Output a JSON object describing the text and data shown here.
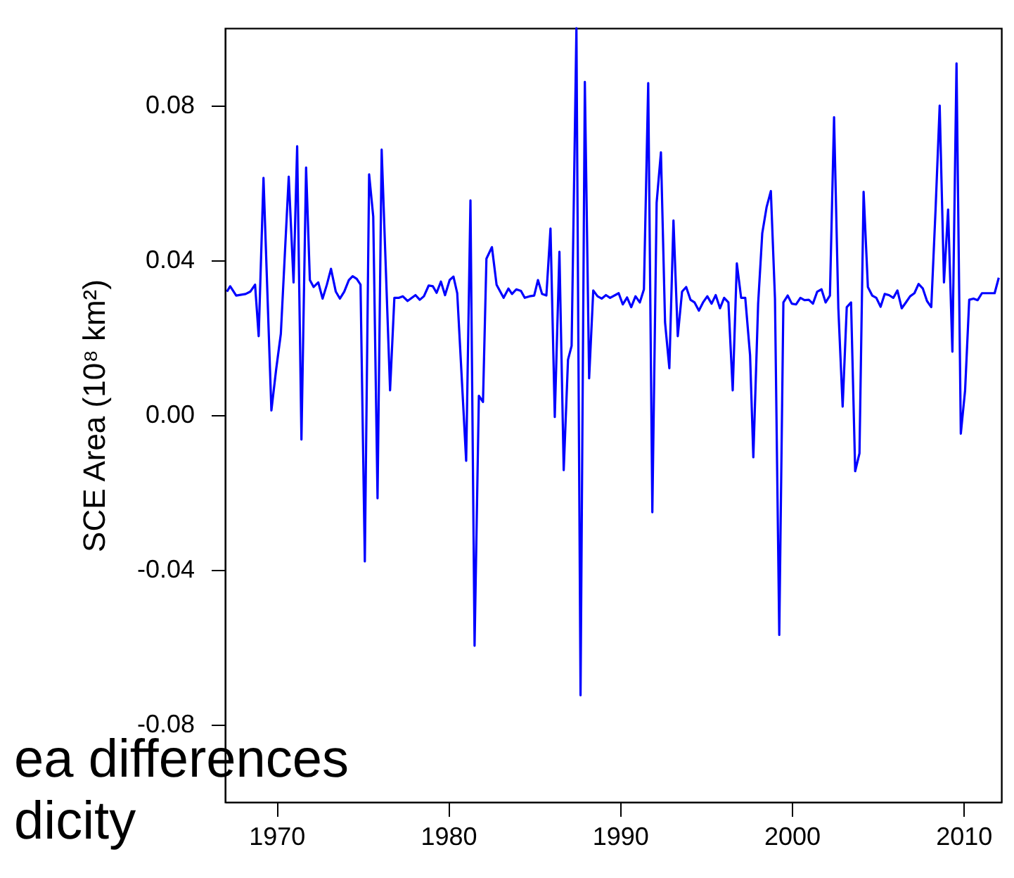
{
  "chart_data": {
    "type": "line",
    "ylabel": "SCE Area (10⁸ km²)",
    "xlim": [
      1967,
      2012.2
    ],
    "xticks": [
      1970,
      1980,
      1990,
      2000,
      2010
    ],
    "ylim": [
      -0.1,
      0.1
    ],
    "yticks": [
      {
        "value": 0.08,
        "label": "0.08"
      },
      {
        "value": 0.04,
        "label": "0.04"
      },
      {
        "value": 0,
        "label": "0.00"
      },
      {
        "value": -0.04,
        "label": "-0.04"
      },
      {
        "value": -0.08,
        "label": "-0.08"
      }
    ],
    "grid": false,
    "annotations": [
      "ea differences",
      "dicity"
    ],
    "series": [
      {
        "color": "#0000ff",
        "x": [
          1967.11,
          1967.3,
          1967.65,
          1968.2,
          1968.47,
          1968.75,
          1968.96,
          1969.24,
          1969.7,
          1969.98,
          1970.25,
          1970.71,
          1970.99,
          1971.2,
          1971.45,
          1971.72,
          1971.94,
          1972.16,
          1972.43,
          1972.68,
          1972.93,
          1973.17,
          1973.45,
          1973.69,
          1973.94,
          1974.21,
          1974.43,
          1974.67,
          1974.89,
          1975.14,
          1975.39,
          1975.63,
          1975.88,
          1976.12,
          1976.61,
          1976.86,
          1977.13,
          1977.35,
          1977.63,
          1978.09,
          1978.34,
          1978.58,
          1978.86,
          1979.1,
          1979.32,
          1979.57,
          1979.81,
          1980.08,
          1980.3,
          1980.52,
          1981.04,
          1981.29,
          1981.53,
          1981.78,
          1982.02,
          1982.22,
          1982.54,
          1982.81,
          1983.22,
          1983.5,
          1983.71,
          1983.96,
          1984.23,
          1984.45,
          1984.73,
          1985.0,
          1985.22,
          1985.46,
          1985.71,
          1985.95,
          1986.2,
          1986.47,
          1986.72,
          1986.97,
          1987.18,
          1987.46,
          1987.7,
          1987.95,
          1988.2,
          1988.44,
          1988.69,
          1988.93,
          1989.18,
          1989.42,
          1989.92,
          1990.16,
          1990.41,
          1990.65,
          1990.9,
          1991.15,
          1991.39,
          1991.64,
          1991.88,
          1992.13,
          1992.38,
          1992.62,
          1992.87,
          1993.11,
          1993.36,
          1993.61,
          1993.85,
          1994.1,
          1994.34,
          1994.59,
          1994.83,
          1995.08,
          1995.33,
          1995.57,
          1995.82,
          1996.06,
          1996.31,
          1996.56,
          1996.8,
          1997.05,
          1997.29,
          1997.57,
          1997.76,
          1998.04,
          1998.28,
          1998.53,
          1998.78,
          1999.02,
          1999.27,
          1999.51,
          1999.76,
          2000.0,
          2000.25,
          2000.5,
          2000.74,
          2000.99,
          2001.23,
          2001.48,
          2001.73,
          2001.97,
          2002.22,
          2002.46,
          2002.71,
          2002.96,
          2003.2,
          2003.45,
          2003.69,
          2003.94,
          2004.18,
          2004.43,
          2004.68,
          2004.92,
          2005.17,
          2005.41,
          2005.66,
          2005.91,
          2006.15,
          2006.4,
          2006.64,
          2006.89,
          2007.14,
          2007.38,
          2007.63,
          2007.87,
          2008.12,
          2008.37,
          2008.61,
          2008.86,
          2009.1,
          2009.35,
          2009.59,
          2009.84,
          2010.09,
          2010.33,
          2010.58,
          2010.82,
          2011.07,
          2011.32,
          2011.56,
          2011.81,
          2012.05
        ],
        "values": [
          0.0319,
          0.0333,
          0.0309,
          0.0313,
          0.0319,
          0.0337,
          0.0204,
          0.0613,
          0.0012,
          0.0119,
          0.021,
          0.0616,
          0.0343,
          0.0695,
          -0.0063,
          0.064,
          0.0349,
          0.0331,
          0.0343,
          0.0301,
          0.0337,
          0.0378,
          0.0319,
          0.0301,
          0.0319,
          0.0349,
          0.0359,
          0.0352,
          0.0337,
          -0.0378,
          0.0622,
          0.0513,
          -0.0215,
          0.0686,
          0.0064,
          0.0303,
          0.0303,
          0.0307,
          0.0295,
          0.031,
          0.0298,
          0.0307,
          0.0335,
          0.0333,
          0.0316,
          0.0345,
          0.031,
          0.0349,
          0.0358,
          0.0315,
          -0.0118,
          0.0555,
          -0.0596,
          0.005,
          0.0034,
          0.0404,
          0.0434,
          0.0337,
          0.0303,
          0.0327,
          0.0313,
          0.0325,
          0.0321,
          0.0303,
          0.0307,
          0.0309,
          0.0349,
          0.0313,
          0.0309,
          0.0482,
          -0.0005,
          0.0422,
          -0.0142,
          0.0143,
          0.0179,
          0.1,
          -0.0724,
          0.0861,
          0.0095,
          0.0322,
          0.0307,
          0.0301,
          0.031,
          0.0303,
          0.0315,
          0.0286,
          0.0304,
          0.0279,
          0.0307,
          0.0291,
          0.0325,
          0.0858,
          -0.0251,
          0.0549,
          0.0679,
          0.024,
          0.0121,
          0.0503,
          0.0204,
          0.0319,
          0.0331,
          0.0298,
          0.0291,
          0.027,
          0.0291,
          0.0307,
          0.0288,
          0.031,
          0.0276,
          0.0303,
          0.0291,
          0.0064,
          0.0392,
          0.0303,
          0.0303,
          0.0155,
          -0.0109,
          0.0288,
          0.047,
          0.0537,
          0.0579,
          0.0301,
          -0.0568,
          0.0291,
          0.0309,
          0.0288,
          0.0286,
          0.0303,
          0.0297,
          0.0298,
          0.0288,
          0.0319,
          0.0325,
          0.0291,
          0.0309,
          0.077,
          0.0276,
          0.0022,
          0.0279,
          0.0291,
          -0.0145,
          -0.0099,
          0.0577,
          0.0331,
          0.0309,
          0.0303,
          0.028,
          0.0313,
          0.031,
          0.0303,
          0.0322,
          0.0276,
          0.0291,
          0.0307,
          0.0315,
          0.0339,
          0.0327,
          0.0295,
          0.0279,
          0.0531,
          0.08,
          0.0343,
          0.0531,
          0.0164,
          0.0909,
          -0.0048,
          0.0064,
          0.0298,
          0.0301,
          0.0297,
          0.0315,
          0.0315,
          0.0315,
          0.0315,
          0.0355
        ]
      }
    ]
  }
}
